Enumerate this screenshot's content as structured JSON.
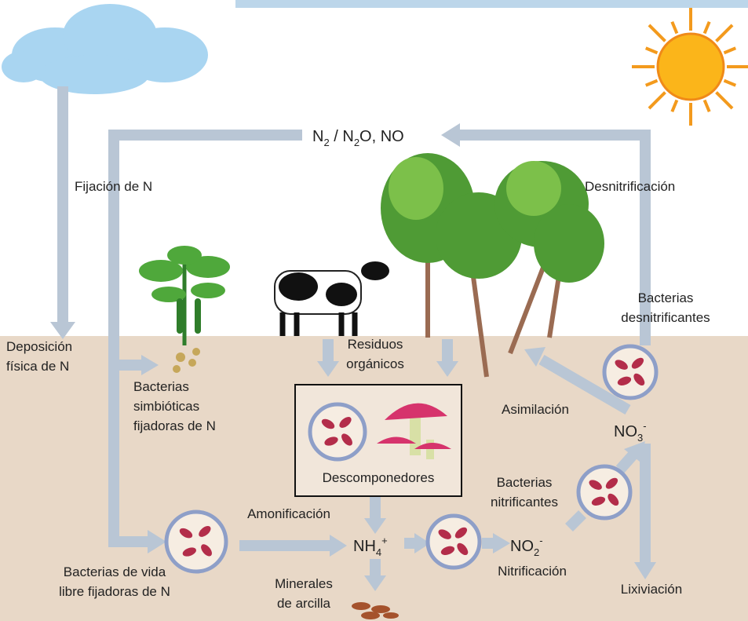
{
  "labels": [
    {
      "lines": [
        "Fijación de N"
      ]
    },
    {
      "lines": [
        "Desnitrificación"
      ]
    },
    {
      "lines": [
        "Bacterias",
        "desnitrificantes"
      ]
    },
    {
      "lines": [
        "Deposición",
        "física de N"
      ]
    },
    {
      "lines": [
        "Residuos",
        "orgánicos"
      ]
    },
    {
      "lines": [
        "Bacterias",
        "simbióticas",
        "fijadoras de N"
      ]
    },
    {
      "lines": [
        "Asimilación"
      ]
    },
    {
      "lines": [
        "Descomponedores"
      ]
    },
    {
      "lines": [
        "Bacterias",
        "nitrificantes"
      ]
    },
    {
      "lines": [
        "Amonificación"
      ]
    },
    {
      "lines": [
        "Bacterias de vida",
        "libre fijadoras de N"
      ]
    },
    {
      "lines": [
        "Nitrificación"
      ]
    },
    {
      "lines": [
        "Lixiviación"
      ]
    },
    {
      "lines": [
        "Minerales",
        "de arcilla"
      ]
    }
  ],
  "formulas": [
    {
      "parts": [
        {
          "text": "N"
        },
        {
          "sub": "2"
        },
        {
          "text": " /  N"
        },
        {
          "sub": "2"
        },
        {
          "text": "O, NO"
        }
      ]
    },
    {
      "parts": [
        {
          "text": "NH"
        },
        {
          "sub": "4"
        },
        {
          "sup": "+"
        }
      ]
    },
    {
      "parts": [
        {
          "text": "NO"
        },
        {
          "sub": "2"
        },
        {
          "sup": "-"
        }
      ]
    },
    {
      "parts": [
        {
          "text": "NO"
        },
        {
          "sub": "3"
        },
        {
          "sup": "-"
        }
      ]
    }
  ]
}
